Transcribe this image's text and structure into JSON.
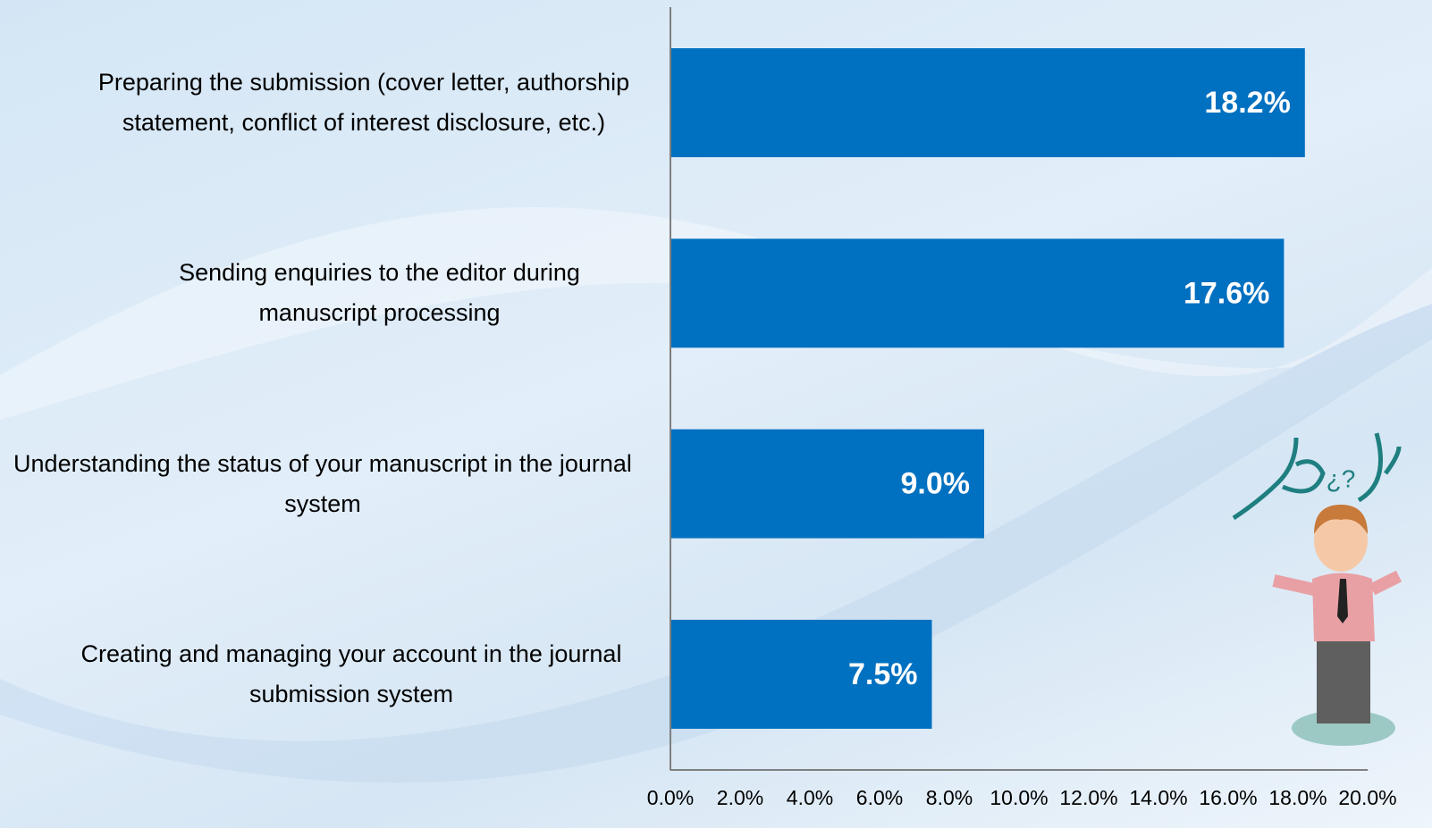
{
  "chart_data": {
    "type": "barh",
    "categories": [
      "Preparing the submission (cover letter, authorship statement, conflict of interest disclosure, etc.)",
      "Sending enquiries to the editor during manuscript processing",
      "Understanding the status of your manuscript in the journal system",
      "Creating and managing your account in the journal submission system"
    ],
    "values": [
      18.2,
      17.6,
      9.0,
      7.5
    ],
    "value_labels": [
      "18.2%",
      "17.6%",
      "9.0%",
      "7.5%"
    ],
    "color": "#0070c0",
    "xlim": [
      0,
      20
    ],
    "xticks": [
      {
        "value": 0,
        "label": "0.0%"
      },
      {
        "value": 2,
        "label": "2.0%"
      },
      {
        "value": 4,
        "label": "4.0%"
      },
      {
        "value": 6,
        "label": "6.0%"
      },
      {
        "value": 8,
        "label": "8.0%"
      },
      {
        "value": 10,
        "label": "10.0%"
      },
      {
        "value": 12,
        "label": "12.0%"
      },
      {
        "value": 14,
        "label": "14.0%"
      },
      {
        "value": 16,
        "label": "16.0%"
      },
      {
        "value": 18,
        "label": "18.0%"
      },
      {
        "value": 20,
        "label": "20.0%"
      }
    ],
    "grid": false
  }
}
